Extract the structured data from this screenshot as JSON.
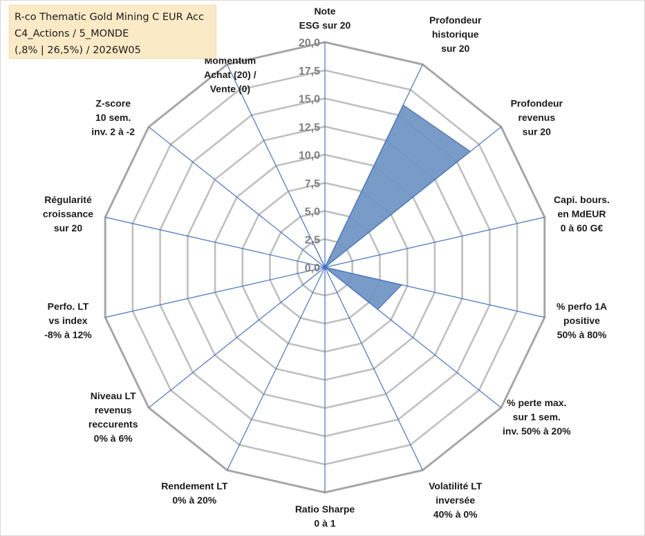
{
  "title": {
    "line1": "R-co Thematic Gold Mining C EUR Acc",
    "line2": "C4_Actions / 5_MONDE",
    "line3": "(,8% | 26,5%) / 2026W05"
  },
  "colors": {
    "series_fill": "#6e93c2",
    "series_stroke": "#4a72b0",
    "spoke": "#4472c4",
    "grid": "#bfbfbf",
    "outer": "#a6a6a6"
  },
  "chart_data": {
    "type": "radar",
    "rmin": 0,
    "rmax": 20,
    "tick_step": 2.5,
    "grid": true,
    "tick_labels": [
      "0,0",
      "2,5",
      "5,0",
      "7,5",
      "10,0",
      "12,5",
      "15,0",
      "17,5",
      "20,0"
    ],
    "axes": [
      {
        "lines": [
          "Note",
          "ESG sur 20"
        ]
      },
      {
        "lines": [
          "Profondeur",
          "historique",
          "sur 20"
        ]
      },
      {
        "lines": [
          "Profondeur",
          "revenus",
          "sur 20"
        ]
      },
      {
        "lines": [
          "Capi. bours.",
          "en MdEUR",
          "0 à 60 G€"
        ]
      },
      {
        "lines": [
          "% perfo 1A",
          "positive",
          "50% à 80%"
        ]
      },
      {
        "lines": [
          "% perte max.",
          "sur 1 sem.",
          "inv. 50% à 20%"
        ]
      },
      {
        "lines": [
          "Volatilité LT",
          "inversée",
          "40% à 0%"
        ]
      },
      {
        "lines": [
          "Ratio Sharpe",
          "0 à 1"
        ]
      },
      {
        "lines": [
          "Rendement LT",
          "0% à 20%"
        ]
      },
      {
        "lines": [
          "Niveau LT",
          "revenus",
          "reccurents",
          "0% à 6%"
        ]
      },
      {
        "lines": [
          "Perfo. LT",
          "vs index",
          "-8% à 12%"
        ]
      },
      {
        "lines": [
          "Régularité",
          "croissance",
          "sur 20"
        ]
      },
      {
        "lines": [
          "Z-score",
          "10 sem.",
          "inv. 2 à -2"
        ]
      },
      {
        "lines": [
          "Momentum",
          "Achat (20) /",
          "Vente (0)"
        ]
      }
    ],
    "series": [
      {
        "values": [
          0,
          16,
          16.5,
          0,
          7,
          6,
          0,
          0,
          0,
          0,
          0,
          0,
          0,
          2.5
        ]
      }
    ]
  }
}
